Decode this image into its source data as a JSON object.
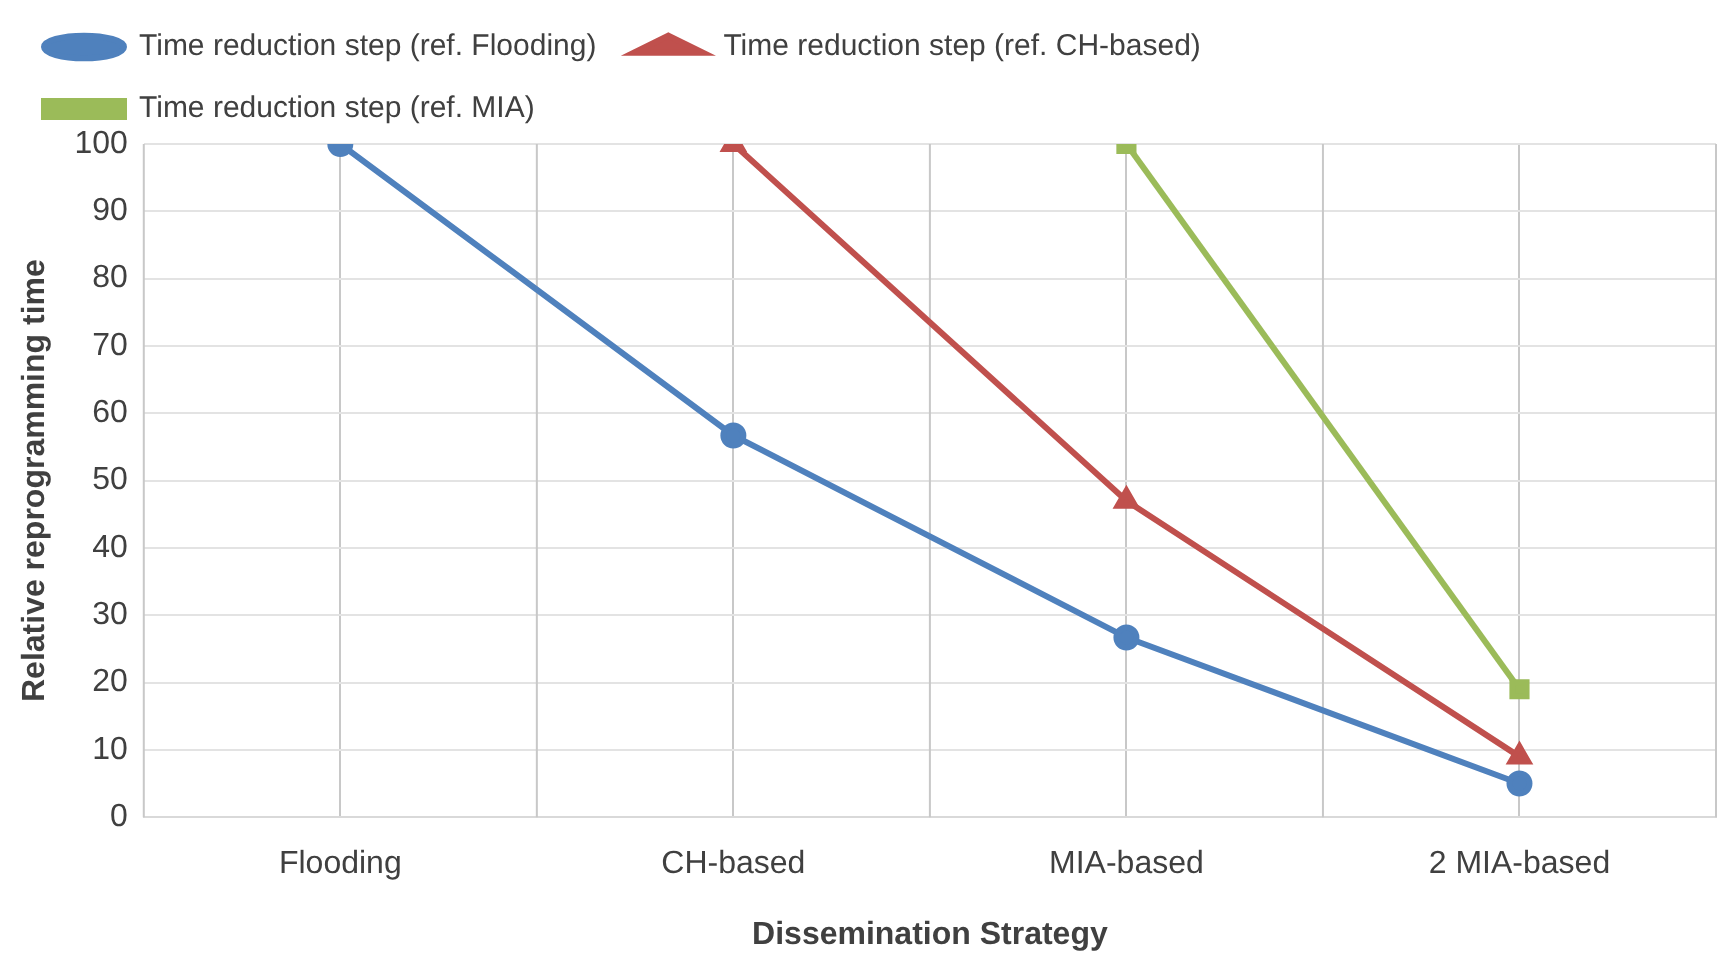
{
  "chart_data": {
    "type": "line",
    "xlabel": "Dissemination Strategy",
    "ylabel": "Relative reprogramming time",
    "categories": [
      "Flooding",
      "CH-based",
      "MIA-based",
      "2 MIA-based"
    ],
    "series": [
      {
        "name": "Time reduction step (ref. Flooding)",
        "color": "#4f81bd",
        "marker": "circle",
        "values": [
          100,
          56.7,
          26.7,
          5
        ]
      },
      {
        "name": "Time reduction step (ref. CH-based)",
        "color": "#c0504d",
        "marker": "triangle",
        "values": [
          null,
          100,
          47,
          9
        ]
      },
      {
        "name": "Time reduction step (ref. MIA)",
        "color": "#9bbb59",
        "marker": "square",
        "values": [
          null,
          null,
          100,
          19
        ]
      }
    ],
    "ylim": [
      0,
      100
    ],
    "yticks": [
      0,
      10,
      20,
      30,
      40,
      50,
      60,
      70,
      80,
      90,
      100
    ],
    "grid": true,
    "legend": "top",
    "line_style": "solid"
  }
}
